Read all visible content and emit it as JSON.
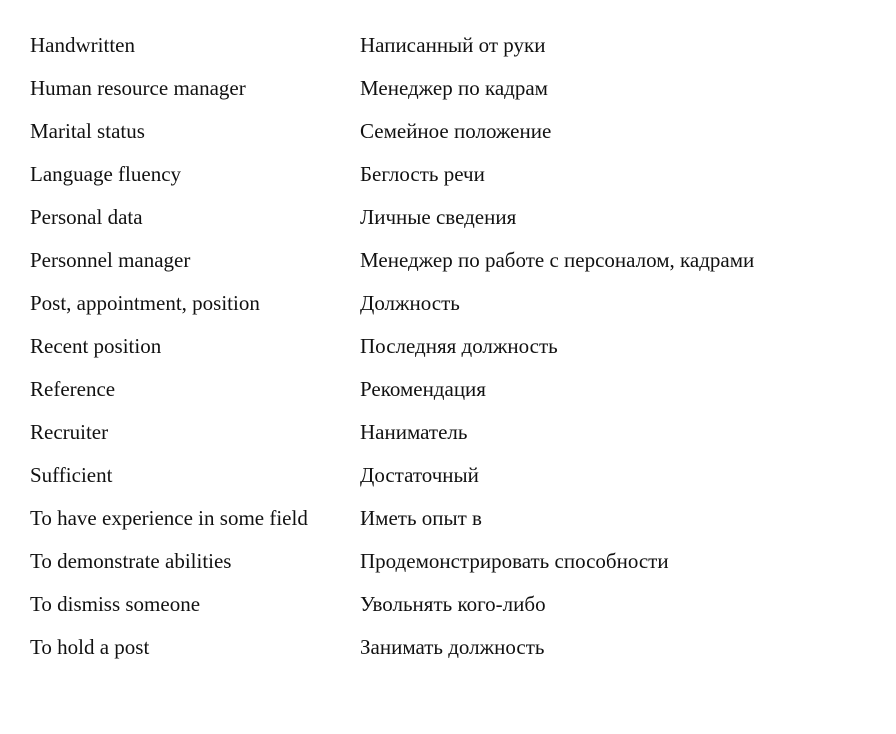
{
  "glossary": [
    {
      "en": "Handwritten",
      "ru": "Написанный от руки"
    },
    {
      "en": "Human resource manager",
      "ru": "Менеджер по кадрам"
    },
    {
      "en": "Marital status",
      "ru": "Семейное положение"
    },
    {
      "en": "Language fluency",
      "ru": "Беглость речи"
    },
    {
      "en": "Personal data",
      "ru": "Личные сведения"
    },
    {
      "en": "Personnel manager",
      "ru": "Менеджер по работе с персоналом, кадрами"
    },
    {
      "en": "Post, appointment, position",
      "ru": "Должность"
    },
    {
      "en": "Recent position",
      "ru": "Последняя должность"
    },
    {
      "en": "Reference",
      "ru": "Рекомендация"
    },
    {
      "en": "Recruiter",
      "ru": "Наниматель"
    },
    {
      "en": "Sufficient",
      "ru": "Достаточный"
    },
    {
      "en": "To have experience in some field",
      "ru": "Иметь опыт в"
    },
    {
      "en": "To demonstrate abilities",
      "ru": "Продемонстрировать способности"
    },
    {
      "en": "To dismiss someone",
      "ru": "Увольнять кого-либо"
    },
    {
      "en": "To hold a post",
      "ru": "Занимать должность"
    }
  ]
}
